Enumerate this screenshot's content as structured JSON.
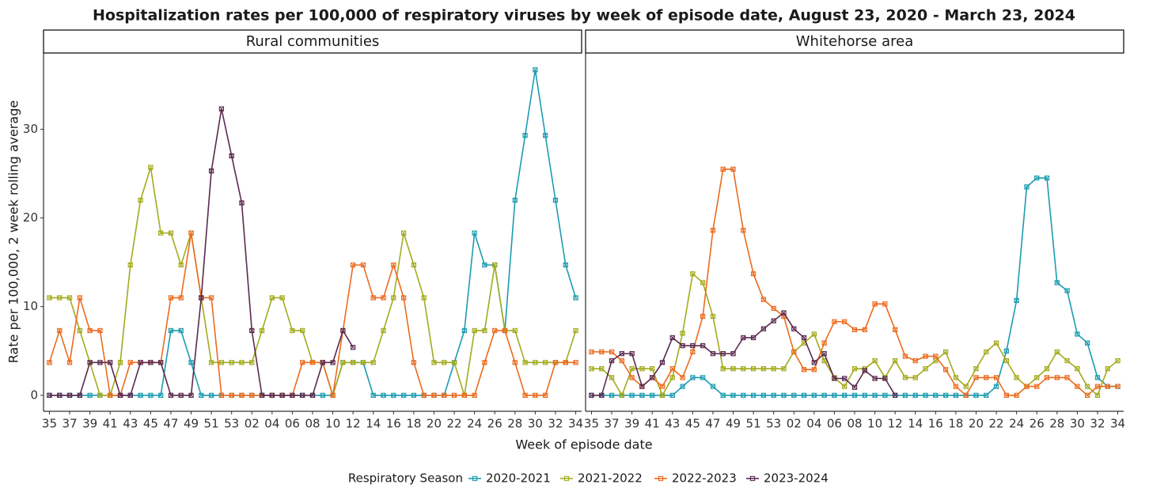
{
  "chart_data": {
    "type": "line",
    "title": "Hospitalization rates per 100,000 of respiratory viruses by week of episode date, August 23, 2020 - March 23, 2024",
    "x_label": "Week of episode date",
    "y_label": "Rate per 100,000, 2 week rolling average",
    "legend_title": "Respiratory Season",
    "categories": [
      "35",
      null,
      "37",
      null,
      "39",
      null,
      "41",
      null,
      "43",
      null,
      "45",
      null,
      "47",
      null,
      "49",
      null,
      "51",
      null,
      "53",
      null,
      "02",
      null,
      "04",
      null,
      "06",
      null,
      "08",
      null,
      "10",
      null,
      "12",
      null,
      "14",
      null,
      "16",
      null,
      "18",
      null,
      "20",
      null,
      "22",
      null,
      "24",
      null,
      "26",
      null,
      "28",
      null,
      "30",
      null,
      "32",
      null,
      "34"
    ],
    "ylim": [
      -1.8,
      38.6
    ],
    "yticks": [
      0,
      10,
      20,
      30
    ],
    "facets": [
      {
        "title": "Rural communities",
        "series": [
          {
            "name": "2020-2021",
            "color": "#1c9cb0",
            "values": [
              0,
              0,
              0,
              0,
              0,
              0,
              0,
              0,
              0,
              0,
              0,
              0,
              7.3,
              7.3,
              3.7,
              0,
              0,
              0,
              0,
              0,
              0,
              0,
              0,
              0,
              0,
              0,
              0,
              0,
              0,
              3.7,
              3.7,
              3.7,
              0,
              0,
              0,
              0,
              0,
              0,
              0,
              0,
              3.7,
              7.3,
              18.3,
              14.7,
              14.7,
              7.3,
              22,
              29.3,
              36.7,
              29.3,
              22,
              14.7,
              11
            ]
          },
          {
            "name": "2021-2022",
            "color": "#a3ab1d",
            "values": [
              11,
              11,
              11,
              7.3,
              3.7,
              0,
              0,
              3.7,
              14.7,
              22,
              25.7,
              18.3,
              18.3,
              14.7,
              18.3,
              11,
              3.7,
              3.7,
              3.7,
              3.7,
              3.7,
              7.3,
              11,
              11,
              7.3,
              7.3,
              3.7,
              3.7,
              0,
              3.7,
              3.7,
              3.7,
              3.7,
              7.3,
              11,
              18.3,
              14.7,
              11,
              3.7,
              3.7,
              3.7,
              0,
              7.3,
              7.3,
              14.7,
              7.3,
              7.3,
              3.7,
              3.7,
              3.7,
              3.7,
              3.7,
              7.3
            ]
          },
          {
            "name": "2022-2023",
            "color": "#ec6b1e",
            "values": [
              3.7,
              7.3,
              3.7,
              11,
              7.3,
              7.3,
              0,
              0,
              3.7,
              3.7,
              3.7,
              3.7,
              11,
              11,
              18.3,
              11,
              11,
              0,
              0,
              0,
              0,
              0,
              0,
              0,
              0,
              3.7,
              3.7,
              3.7,
              0,
              7.3,
              14.7,
              14.7,
              11,
              11,
              14.7,
              11,
              3.7,
              0,
              0,
              0,
              0,
              0,
              0,
              3.7,
              7.3,
              7.3,
              3.7,
              0,
              0,
              0,
              3.7,
              3.7,
              3.7
            ]
          },
          {
            "name": "2023-2024",
            "color": "#5b2a4e",
            "values": [
              0,
              0,
              0,
              0,
              3.7,
              3.7,
              3.7,
              0,
              0,
              3.7,
              3.7,
              3.7,
              0,
              0,
              0,
              11,
              25.3,
              32.3,
              27,
              21.7,
              7.3,
              0,
              0,
              0,
              0,
              0,
              0,
              3.7,
              3.7,
              7.3,
              5.4,
              null,
              null,
              null,
              null,
              null,
              null,
              null,
              null,
              null,
              null,
              null,
              null,
              null,
              null,
              null,
              null,
              null,
              null,
              null,
              null,
              null,
              null
            ]
          }
        ]
      },
      {
        "title": "Whitehorse area",
        "series": [
          {
            "name": "2020-2021",
            "color": "#1c9cb0",
            "values": [
              0,
              0,
              0,
              0,
              0,
              0,
              0,
              0,
              0,
              1,
              2,
              2,
              1,
              0,
              0,
              0,
              0,
              0,
              0,
              0,
              0,
              0,
              0,
              0,
              0,
              0,
              0,
              0,
              0,
              0,
              0,
              0,
              0,
              0,
              0,
              0,
              0,
              0,
              0,
              0,
              1,
              5,
              10.7,
              23.5,
              24.5,
              24.5,
              12.7,
              11.8,
              6.9,
              5.9,
              2,
              1,
              1
            ]
          },
          {
            "name": "2021-2022",
            "color": "#a3ab1d",
            "values": [
              3,
              3,
              2,
              0,
              3,
              3,
              3,
              0,
              2,
              7,
              13.7,
              12.7,
              8.9,
              3,
              3,
              3,
              3,
              3,
              3,
              3,
              4.9,
              5.9,
              6.9,
              3.9,
              2,
              1,
              3,
              3,
              3.9,
              2,
              3.9,
              2,
              2,
              3,
              3.9,
              4.9,
              2,
              1,
              3,
              4.9,
              5.9,
              3.9,
              2,
              1,
              2,
              3,
              4.9,
              3.9,
              3,
              1,
              0,
              3,
              3.9
            ]
          },
          {
            "name": "2022-2023",
            "color": "#ec6b1e",
            "values": [
              4.9,
              4.9,
              4.9,
              3.9,
              2,
              1,
              2,
              1,
              3,
              2,
              4.9,
              8.9,
              18.6,
              25.5,
              25.5,
              18.6,
              13.7,
              10.8,
              9.8,
              8.9,
              4.9,
              2.9,
              2.9,
              5.9,
              8.3,
              8.3,
              7.4,
              7.4,
              10.3,
              10.3,
              7.4,
              4.4,
              3.9,
              4.4,
              4.4,
              2.9,
              1,
              0,
              2,
              2,
              2,
              0,
              0,
              1,
              1,
              2,
              2,
              2,
              1,
              0,
              1,
              1,
              1
            ]
          },
          {
            "name": "2023-2024",
            "color": "#5b2a4e",
            "values": [
              0,
              0,
              3.9,
              4.7,
              4.7,
              1,
              2,
              3.7,
              6.5,
              5.6,
              5.6,
              5.6,
              4.7,
              4.7,
              4.7,
              6.5,
              6.5,
              7.5,
              8.4,
              9.3,
              7.5,
              6.5,
              3.7,
              4.7,
              1.9,
              1.9,
              0.9,
              2.8,
              1.9,
              1.9,
              0,
              null,
              null,
              null,
              null,
              null,
              null,
              null,
              null,
              null,
              null,
              null,
              null,
              null,
              null,
              null,
              null,
              null,
              null,
              null,
              null,
              null,
              null
            ]
          }
        ]
      }
    ]
  }
}
